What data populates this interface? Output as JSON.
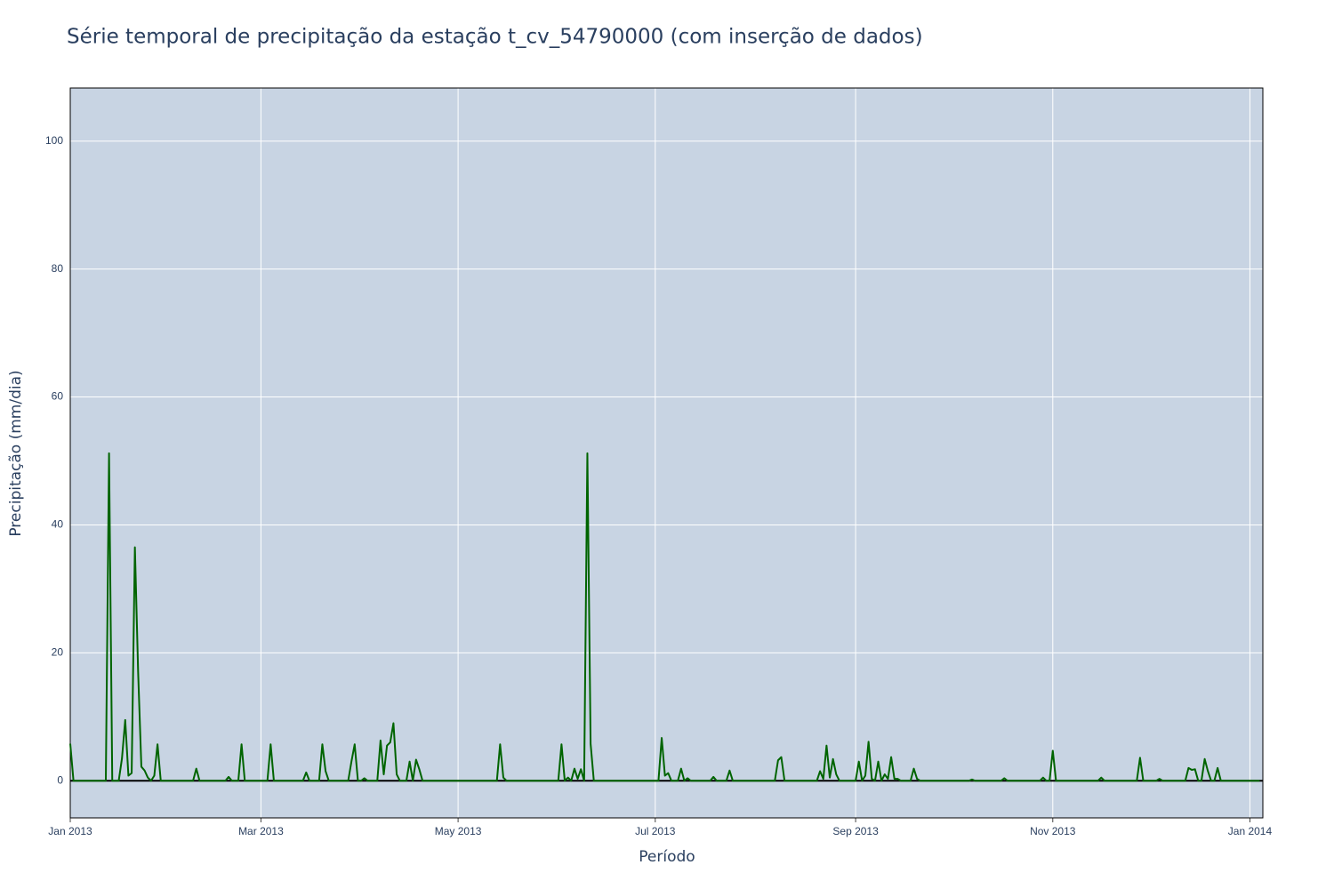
{
  "chart_data": {
    "type": "line",
    "title": "Série temporal de precipitação da estação t_cv_54790000 (com inserção de dados)",
    "x_label": "Período",
    "y_label": "Precipitação (mm/dia)",
    "x": [
      0,
      1,
      2,
      3,
      4,
      5,
      6,
      7,
      8,
      9,
      10,
      11,
      12,
      13,
      14,
      15,
      16,
      17,
      18,
      19,
      20,
      21,
      22,
      23,
      24,
      25,
      26,
      27,
      28,
      29,
      30,
      31,
      32,
      33,
      34,
      35,
      36,
      37,
      38,
      39,
      40,
      41,
      42,
      43,
      44,
      45,
      46,
      47,
      48,
      49,
      50,
      51,
      52,
      53,
      54,
      55,
      56,
      57,
      58,
      59,
      60,
      61,
      62,
      63,
      64,
      65,
      66,
      67,
      68,
      69,
      70,
      71,
      72,
      73,
      74,
      75,
      76,
      77,
      78,
      79,
      80,
      81,
      82,
      83,
      84,
      85,
      86,
      87,
      88,
      89,
      90,
      91,
      92,
      93,
      94,
      95,
      96,
      97,
      98,
      99,
      100,
      101,
      102,
      103,
      104,
      105,
      106,
      107,
      108,
      109,
      110,
      111,
      112,
      113,
      114,
      115,
      116,
      117,
      118,
      119,
      120,
      121,
      122,
      123,
      124,
      125,
      126,
      127,
      128,
      129,
      130,
      131,
      132,
      133,
      134,
      135,
      136,
      137,
      138,
      139,
      140,
      141,
      142,
      143,
      144,
      145,
      146,
      147,
      148,
      149,
      150,
      151,
      152,
      153,
      154,
      155,
      156,
      157,
      158,
      159,
      160,
      161,
      162,
      163,
      164,
      165,
      166,
      167,
      168,
      169,
      170,
      171,
      172,
      173,
      174,
      175,
      176,
      177,
      178,
      179,
      180,
      181,
      182,
      183,
      184,
      185,
      186,
      187,
      188,
      189,
      190,
      191,
      192,
      193,
      194,
      195,
      196,
      197,
      198,
      199,
      200,
      201,
      202,
      203,
      204,
      205,
      206,
      207,
      208,
      209,
      210,
      211,
      212,
      213,
      214,
      215,
      216,
      217,
      218,
      219,
      220,
      221,
      222,
      223,
      224,
      225,
      226,
      227,
      228,
      229,
      230,
      231,
      232,
      233,
      234,
      235,
      236,
      237,
      238,
      239,
      240,
      241,
      242,
      243,
      244,
      245,
      246,
      247,
      248,
      249,
      250,
      251,
      252,
      253,
      254,
      255,
      256,
      257,
      258,
      259,
      260,
      261,
      262,
      263,
      264,
      265,
      266,
      267,
      268,
      269,
      270,
      271,
      272,
      273,
      274,
      275,
      276,
      277,
      278,
      279,
      280,
      281,
      282,
      283,
      284,
      285,
      286,
      287,
      288,
      289,
      290,
      291,
      292,
      293,
      294,
      295,
      296,
      297,
      298,
      299,
      300,
      301,
      302,
      303,
      304,
      305,
      306,
      307,
      308,
      309,
      310,
      311,
      312,
      313,
      314,
      315,
      316,
      317,
      318,
      319,
      320,
      321,
      322,
      323,
      324,
      325,
      326,
      327,
      328,
      329,
      330,
      331,
      332,
      333,
      334,
      335,
      336,
      337,
      338,
      339,
      340,
      341,
      342,
      343,
      344,
      345,
      346,
      347,
      348,
      349,
      350,
      351,
      352,
      353,
      354,
      355,
      356,
      357,
      358,
      359,
      360,
      361,
      362,
      363,
      364,
      365,
      366,
      367,
      368
    ],
    "series": [
      {
        "color": "#006400",
        "values": [
          5.8,
          0,
          0,
          0,
          0,
          0,
          0,
          0,
          0,
          0,
          0,
          0,
          51.2,
          0,
          0,
          0,
          3.5,
          9.5,
          0.8,
          1.2,
          36.5,
          17,
          2.2,
          1.6,
          0.5,
          0,
          0.8,
          5.7,
          0,
          0,
          0,
          0,
          0,
          0,
          0,
          0,
          0,
          0,
          0,
          1.9,
          0,
          0,
          0,
          0,
          0,
          0,
          0,
          0,
          0,
          0.6,
          0,
          0,
          0,
          5.7,
          0,
          0,
          0,
          0,
          0,
          0,
          0,
          0,
          5.7,
          0,
          0,
          0,
          0,
          0,
          0,
          0,
          0,
          0,
          0,
          1.3,
          0,
          0,
          0,
          0,
          5.7,
          1.5,
          0,
          0,
          0,
          0,
          0,
          0,
          0,
          3,
          5.7,
          0,
          0,
          0.4,
          0,
          0,
          0,
          0,
          6.3,
          1,
          5.5,
          6,
          9,
          1,
          0,
          0,
          0,
          3,
          0,
          3.3,
          1.8,
          0,
          0,
          0,
          0,
          0,
          0,
          0,
          0,
          0,
          0,
          0,
          0,
          0,
          0,
          0,
          0,
          0,
          0,
          0,
          0,
          0,
          0,
          0,
          0,
          5.7,
          0.5,
          0,
          0,
          0,
          0,
          0,
          0,
          0,
          0,
          0,
          0,
          0,
          0,
          0,
          0,
          0,
          0,
          0,
          5.7,
          0,
          0.5,
          0,
          1.9,
          0.3,
          1.8,
          0,
          51.2,
          5.8,
          0,
          0,
          0,
          0,
          0,
          0,
          0,
          0,
          0,
          0,
          0,
          0,
          0,
          0,
          0,
          0,
          0,
          0,
          0,
          0,
          0,
          6.7,
          0.8,
          1.2,
          0,
          0,
          0,
          1.9,
          0,
          0.4,
          0,
          0,
          0,
          0,
          0,
          0,
          0,
          0.6,
          0,
          0,
          0,
          0,
          1.6,
          0,
          0,
          0,
          0,
          0,
          0,
          0,
          0,
          0,
          0,
          0,
          0,
          0,
          0,
          3.2,
          3.7,
          0,
          0,
          0,
          0,
          0,
          0,
          0,
          0,
          0,
          0,
          0,
          1.5,
          0.3,
          5.5,
          0.5,
          3.4,
          1,
          0,
          0,
          0,
          0,
          0,
          0,
          3,
          0,
          0.8,
          6.1,
          0.3,
          0,
          3,
          0,
          1,
          0.3,
          3.7,
          0.3,
          0.3,
          0,
          0,
          0,
          0,
          1.9,
          0.3,
          0,
          0,
          0,
          0,
          0,
          0,
          0,
          0,
          0,
          0,
          0,
          0,
          0,
          0,
          0,
          0,
          0.2,
          0,
          0,
          0,
          0,
          0,
          0,
          0,
          0,
          0,
          0.4,
          0,
          0,
          0,
          0,
          0,
          0,
          0,
          0,
          0,
          0,
          0,
          0.5,
          0,
          0,
          4.7,
          0,
          0,
          0,
          0,
          0,
          0,
          0,
          0,
          0,
          0,
          0,
          0,
          0,
          0,
          0.5,
          0,
          0,
          0,
          0,
          0,
          0,
          0,
          0,
          0,
          0,
          0,
          3.6,
          0,
          0,
          0,
          0,
          0,
          0.3,
          0,
          0,
          0,
          0,
          0,
          0,
          0,
          0,
          2,
          1.7,
          1.8,
          0,
          0,
          3.4,
          1.5,
          0,
          0,
          2,
          0,
          0,
          0,
          0,
          0,
          0,
          0,
          0,
          0,
          0,
          0,
          0,
          0
        ]
      }
    ],
    "xlim": [
      0,
      369
    ],
    "xticks": [
      {
        "value": 0,
        "label": "Jan 2013"
      },
      {
        "value": 59,
        "label": "Mar 2013"
      },
      {
        "value": 120,
        "label": "May 2013"
      },
      {
        "value": 181,
        "label": "Jul 2013"
      },
      {
        "value": 243,
        "label": "Sep 2013"
      },
      {
        "value": 304,
        "label": "Nov 2013"
      },
      {
        "value": 365,
        "label": "Jan 2014"
      }
    ],
    "ylim": [
      -5.8,
      108.3
    ],
    "yticks": [
      0,
      20,
      40,
      60,
      80,
      100
    ],
    "grid": true,
    "background": "#c8d4e3"
  }
}
